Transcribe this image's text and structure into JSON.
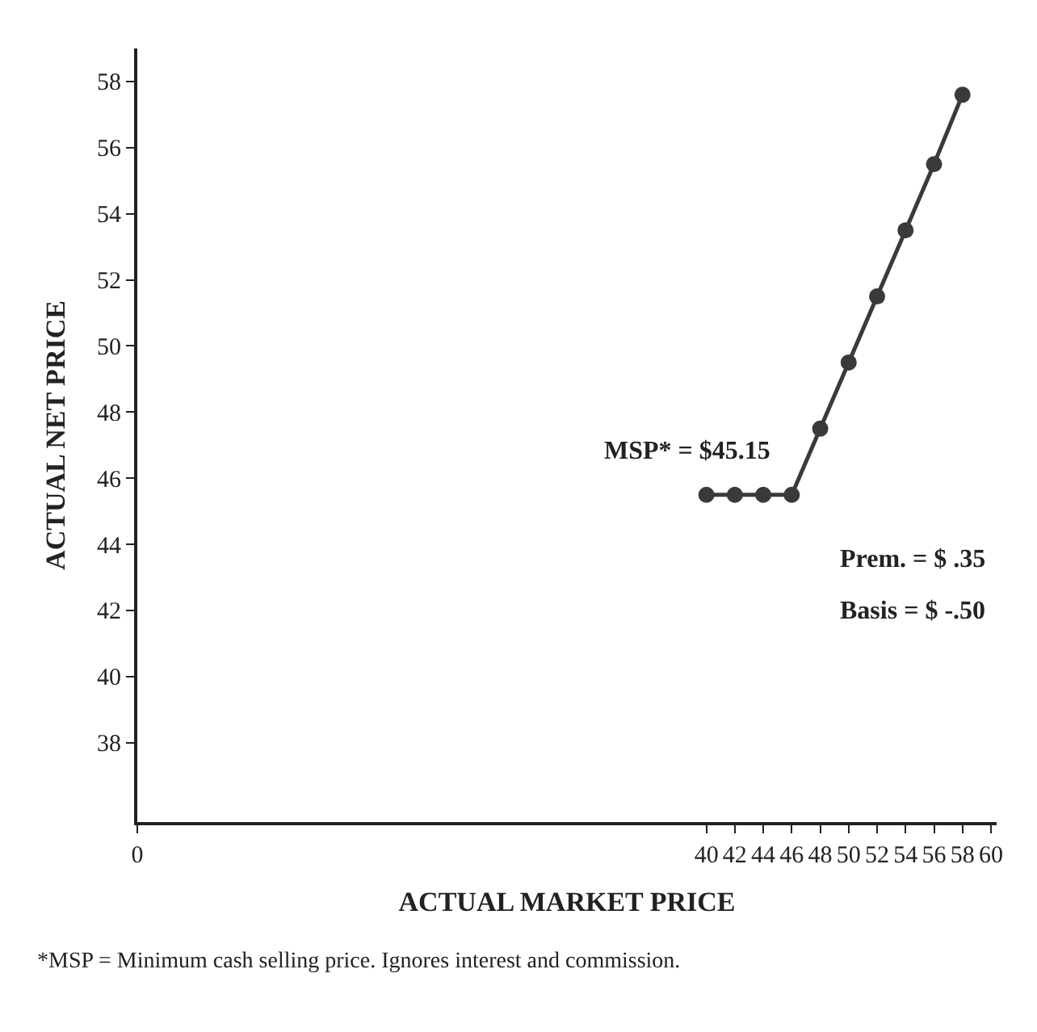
{
  "chart_data": {
    "type": "line",
    "xlabel": "ACTUAL MARKET PRICE",
    "ylabel": "ACTUAL NET PRICE",
    "x": [
      40,
      42,
      44,
      46,
      48,
      50,
      52,
      54,
      56,
      58
    ],
    "series": [
      {
        "color": "#3a3a3a",
        "values": [
          45.5,
          45.5,
          45.5,
          45.5,
          47.5,
          49.5,
          51.5,
          53.5,
          55.5,
          57.6
        ]
      }
    ],
    "xlim": [
      0,
      60.4
    ],
    "xticks": [
      0,
      40,
      42,
      44,
      46,
      48,
      50,
      52,
      54,
      56,
      58,
      60
    ],
    "ylim": [
      35.6,
      59
    ],
    "yticks": [
      38,
      40,
      42,
      44,
      46,
      48,
      50,
      52,
      54,
      56,
      58
    ],
    "marker": "circle",
    "line_style": "solid",
    "annotations": [
      "MSP* = $45.15",
      "Prem. = $ .35",
      "Basis = $ -.50",
      "*MSP = Minimum cash selling price. Ignores interest and commission."
    ]
  }
}
